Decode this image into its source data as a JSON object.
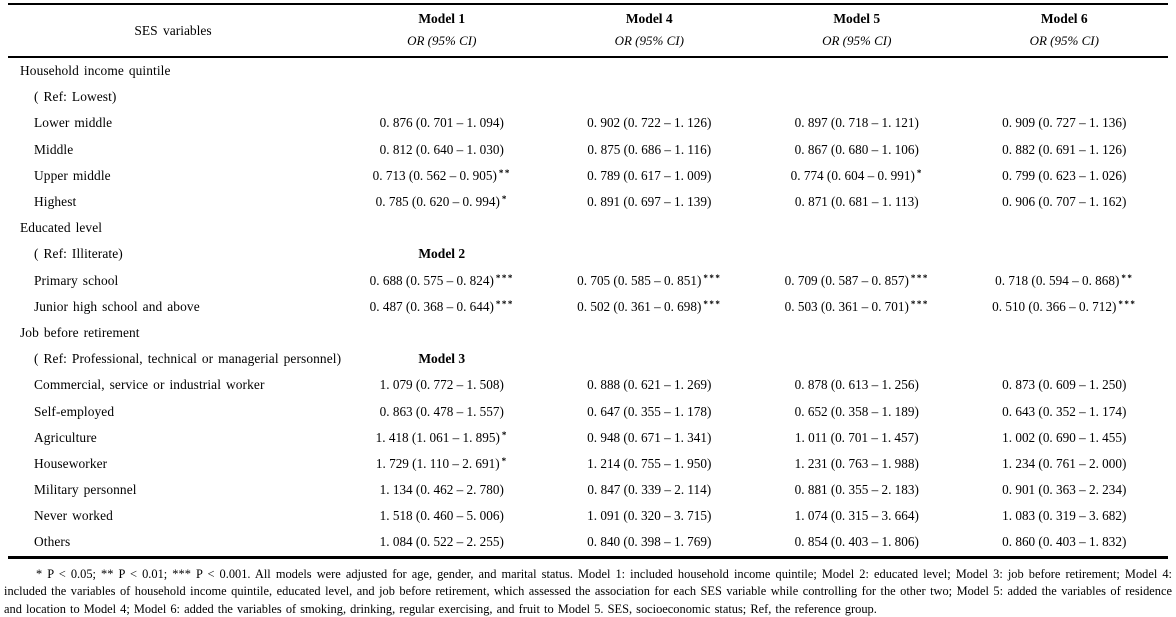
{
  "table": {
    "corner_label": "SES variables",
    "models": [
      {
        "name": "Model 1",
        "sub": "OR (95% CI)"
      },
      {
        "name": "Model 4",
        "sub": "OR (95% CI)"
      },
      {
        "name": "Model 5",
        "sub": "OR (95% CI)"
      },
      {
        "name": "Model 6",
        "sub": "OR (95% CI)"
      }
    ],
    "rows": [
      {
        "label": "Household income quintile",
        "indent": false,
        "cells": [
          null,
          null,
          null,
          null
        ]
      },
      {
        "label": "( Ref: Lowest)",
        "indent": true,
        "cells": [
          null,
          null,
          null,
          null
        ]
      },
      {
        "label": "Lower middle",
        "indent": true,
        "cells": [
          {
            "v": "0. 876 (0. 701 – 1. 094)",
            "s": ""
          },
          {
            "v": "0. 902 (0. 722 – 1. 126)",
            "s": ""
          },
          {
            "v": "0. 897 (0. 718 – 1. 121)",
            "s": ""
          },
          {
            "v": "0. 909 (0. 727 – 1. 136)",
            "s": ""
          }
        ]
      },
      {
        "label": "Middle",
        "indent": true,
        "cells": [
          {
            "v": "0. 812 (0. 640 – 1. 030)",
            "s": ""
          },
          {
            "v": "0. 875 (0. 686 – 1. 116)",
            "s": ""
          },
          {
            "v": "0. 867 (0. 680 – 1. 106)",
            "s": ""
          },
          {
            "v": "0. 882 (0. 691 – 1. 126)",
            "s": ""
          }
        ]
      },
      {
        "label": "Upper middle",
        "indent": true,
        "cells": [
          {
            "v": "0. 713 (0. 562 – 0. 905)",
            "s": "**"
          },
          {
            "v": "0. 789 (0. 617 – 1. 009)",
            "s": ""
          },
          {
            "v": "0. 774 (0. 604 – 0. 991)",
            "s": "*"
          },
          {
            "v": "0. 799 (0. 623 – 1. 026)",
            "s": ""
          }
        ]
      },
      {
        "label": "Highest",
        "indent": true,
        "cells": [
          {
            "v": "0. 785 (0. 620 – 0. 994)",
            "s": "*"
          },
          {
            "v": "0. 891 (0. 697 – 1. 139)",
            "s": ""
          },
          {
            "v": "0. 871 (0. 681 – 1. 113)",
            "s": ""
          },
          {
            "v": "0. 906 (0. 707 – 1. 162)",
            "s": ""
          }
        ]
      },
      {
        "label": "Educated level",
        "indent": false,
        "cells": [
          null,
          null,
          null,
          null
        ]
      },
      {
        "label": "( Ref: Illiterate)",
        "indent": true,
        "cells": [
          {
            "v": "Model 2",
            "s": "",
            "bold": true
          },
          null,
          null,
          null
        ]
      },
      {
        "label": "Primary school",
        "indent": true,
        "cells": [
          {
            "v": "0. 688 (0. 575 – 0. 824)",
            "s": "***"
          },
          {
            "v": "0. 705 (0. 585 – 0. 851)",
            "s": "***"
          },
          {
            "v": "0. 709 (0. 587 – 0. 857)",
            "s": "***"
          },
          {
            "v": "0. 718 (0. 594 – 0. 868)",
            "s": "**"
          }
        ]
      },
      {
        "label": "Junior high school and above",
        "indent": true,
        "cells": [
          {
            "v": "0. 487 (0. 368 – 0. 644)",
            "s": "***"
          },
          {
            "v": "0. 502 (0. 361 – 0. 698)",
            "s": "***"
          },
          {
            "v": "0. 503 (0. 361 – 0. 701)",
            "s": "***"
          },
          {
            "v": "0. 510 (0. 366 – 0. 712)",
            "s": "***"
          }
        ]
      },
      {
        "label": "Job before retirement",
        "indent": false,
        "cells": [
          null,
          null,
          null,
          null
        ]
      },
      {
        "label": "( Ref: Professional, technical or managerial personnel)",
        "indent": true,
        "cells": [
          {
            "v": "Model 3",
            "s": "",
            "bold": true
          },
          null,
          null,
          null
        ]
      },
      {
        "label": "Commercial, service or industrial worker",
        "indent": true,
        "cells": [
          {
            "v": "1. 079 (0. 772 – 1. 508)",
            "s": ""
          },
          {
            "v": "0. 888 (0. 621 – 1. 269)",
            "s": ""
          },
          {
            "v": "0. 878 (0. 613 – 1. 256)",
            "s": ""
          },
          {
            "v": "0. 873 (0. 609 – 1. 250)",
            "s": ""
          }
        ]
      },
      {
        "label": "Self-employed",
        "indent": true,
        "cells": [
          {
            "v": "0. 863 (0. 478 – 1. 557)",
            "s": ""
          },
          {
            "v": "0. 647 (0. 355 – 1. 178)",
            "s": ""
          },
          {
            "v": "0. 652 (0. 358 – 1. 189)",
            "s": ""
          },
          {
            "v": "0. 643 (0. 352 – 1. 174)",
            "s": ""
          }
        ]
      },
      {
        "label": "Agriculture",
        "indent": true,
        "cells": [
          {
            "v": "1. 418 (1. 061 – 1. 895)",
            "s": "*"
          },
          {
            "v": "0. 948 (0. 671 – 1. 341)",
            "s": ""
          },
          {
            "v": "1. 011 (0. 701 – 1. 457)",
            "s": ""
          },
          {
            "v": "1. 002 (0. 690 – 1. 455)",
            "s": ""
          }
        ]
      },
      {
        "label": "Houseworker",
        "indent": true,
        "cells": [
          {
            "v": "1. 729 (1. 110 – 2. 691)",
            "s": "*"
          },
          {
            "v": "1. 214 (0. 755 – 1. 950)",
            "s": ""
          },
          {
            "v": "1. 231 (0. 763 – 1. 988)",
            "s": ""
          },
          {
            "v": "1. 234 (0. 761 – 2. 000)",
            "s": ""
          }
        ]
      },
      {
        "label": "Military personnel",
        "indent": true,
        "cells": [
          {
            "v": "1. 134 (0. 462 – 2. 780)",
            "s": ""
          },
          {
            "v": "0. 847 (0. 339 – 2. 114)",
            "s": ""
          },
          {
            "v": "0. 881 (0. 355 – 2. 183)",
            "s": ""
          },
          {
            "v": "0. 901 (0. 363 – 2. 234)",
            "s": ""
          }
        ]
      },
      {
        "label": "Never worked",
        "indent": true,
        "cells": [
          {
            "v": "1. 518 (0. 460 – 5. 006)",
            "s": ""
          },
          {
            "v": "1. 091 (0. 320 – 3. 715)",
            "s": ""
          },
          {
            "v": "1. 074 (0. 315 – 3. 664)",
            "s": ""
          },
          {
            "v": "1. 083 (0. 319 – 3. 682)",
            "s": ""
          }
        ]
      },
      {
        "label": "Others",
        "indent": true,
        "cells": [
          {
            "v": "1. 084 (0. 522 – 2. 255)",
            "s": ""
          },
          {
            "v": "0. 840 (0. 398 – 1. 769)",
            "s": ""
          },
          {
            "v": "0. 854 (0. 403 – 1. 806)",
            "s": ""
          },
          {
            "v": "0. 860 (0. 403 – 1. 832)",
            "s": ""
          }
        ]
      }
    ]
  },
  "footnote": {
    "text": "* P < 0.05; ** P < 0.01; *** P < 0.001. All models were adjusted for age, gender, and marital status. Model 1: included household income quintile; Model 2: educated level; Model 3: job before retirement; Model 4: included the variables of household income quintile, educated level, and job before retirement, which assessed the association for each SES variable while controlling for the other two; Model 5: added the variables of residence and location to Model 4; Model 6: added the variables of smoking, drinking, regular exercising, and fruit to Model 5. SES, socioeconomic status; Ref, the reference group."
  }
}
